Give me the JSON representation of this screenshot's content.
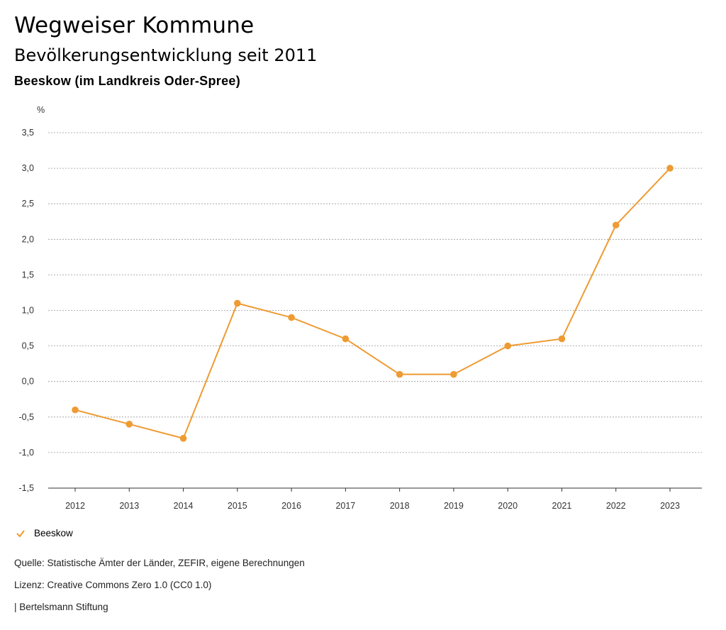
{
  "header": {
    "title": "Wegweiser Kommune",
    "subtitle": "Bevölkerungsentwicklung seit 2011",
    "place": "Beeskow (im Landkreis Oder-Spree)"
  },
  "colors": {
    "series": "#EE9B33",
    "grid": "#999999",
    "axis": "#333333"
  },
  "legend": {
    "label": "Beeskow",
    "icon": "check-icon"
  },
  "footer": {
    "source": "Quelle: Statistische Ämter der Länder, ZEFIR, eigene Berechnungen",
    "license": "Lizenz: Creative Commons Zero 1.0 (CC0 1.0)",
    "brand": "| Bertelsmann Stiftung"
  },
  "chart_data": {
    "type": "line",
    "title": "Bevölkerungsentwicklung seit 2011",
    "ylabel": "%",
    "xlabel": "",
    "categories": [
      "2012",
      "2013",
      "2014",
      "2015",
      "2016",
      "2017",
      "2018",
      "2019",
      "2020",
      "2021",
      "2022",
      "2023"
    ],
    "series": [
      {
        "name": "Beeskow",
        "values": [
          -0.4,
          -0.6,
          -0.8,
          1.1,
          0.9,
          0.6,
          0.1,
          0.1,
          0.5,
          0.6,
          2.2,
          3.0
        ]
      }
    ],
    "ylim": [
      -1.5,
      3.5
    ],
    "yticks": [
      3.5,
      3.0,
      2.5,
      2.0,
      1.5,
      1.0,
      0.5,
      0.0,
      -0.5,
      -1.0,
      -1.5
    ],
    "ytick_labels": [
      "3,5",
      "3,0",
      "2,5",
      "2,0",
      "1,5",
      "1,0",
      "0,5",
      "0,0",
      "-0,5",
      "-1,0",
      "-1,5"
    ],
    "grid": true,
    "legend_position": "bottom-left"
  }
}
